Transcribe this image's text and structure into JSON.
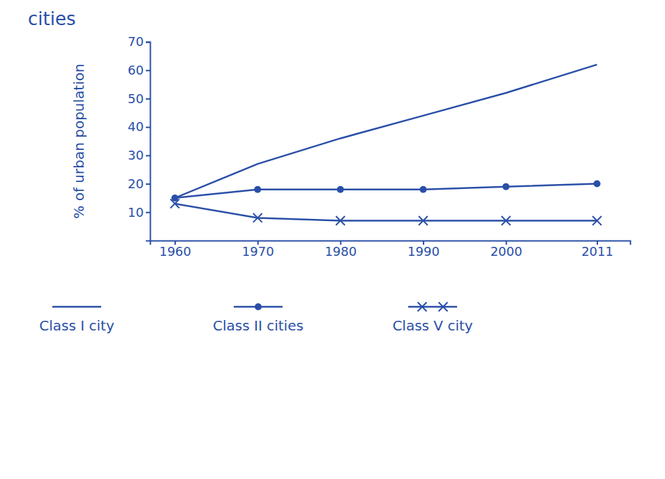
{
  "chart_data": {
    "type": "line",
    "title": "cities",
    "y_label": "% of urban population",
    "x": [
      1960,
      1970,
      1980,
      1990,
      2000,
      2011
    ],
    "xlim": [
      1957,
      2015
    ],
    "xticks": [
      1960,
      1970,
      1980,
      1990,
      2000,
      2011
    ],
    "ylim": [
      0,
      70
    ],
    "yticks": [
      10,
      20,
      30,
      40,
      50,
      60,
      70
    ],
    "grid": false,
    "legend": "bottom",
    "series": [
      {
        "name": "Class I city",
        "color": "#2a4fa8",
        "marker": "none",
        "line_style": "solid",
        "values": [
          15,
          27,
          36,
          44,
          52,
          62
        ]
      },
      {
        "name": "Class II cities",
        "color": "#2a4fa8",
        "marker": "circle",
        "line_style": "solid",
        "values": [
          15,
          18,
          18,
          18,
          19,
          20
        ]
      },
      {
        "name": "Class V city",
        "color": "#2a4fa8",
        "marker": "x",
        "line_style": "solid",
        "values": [
          13,
          8,
          7,
          7,
          7,
          7
        ]
      }
    ]
  }
}
